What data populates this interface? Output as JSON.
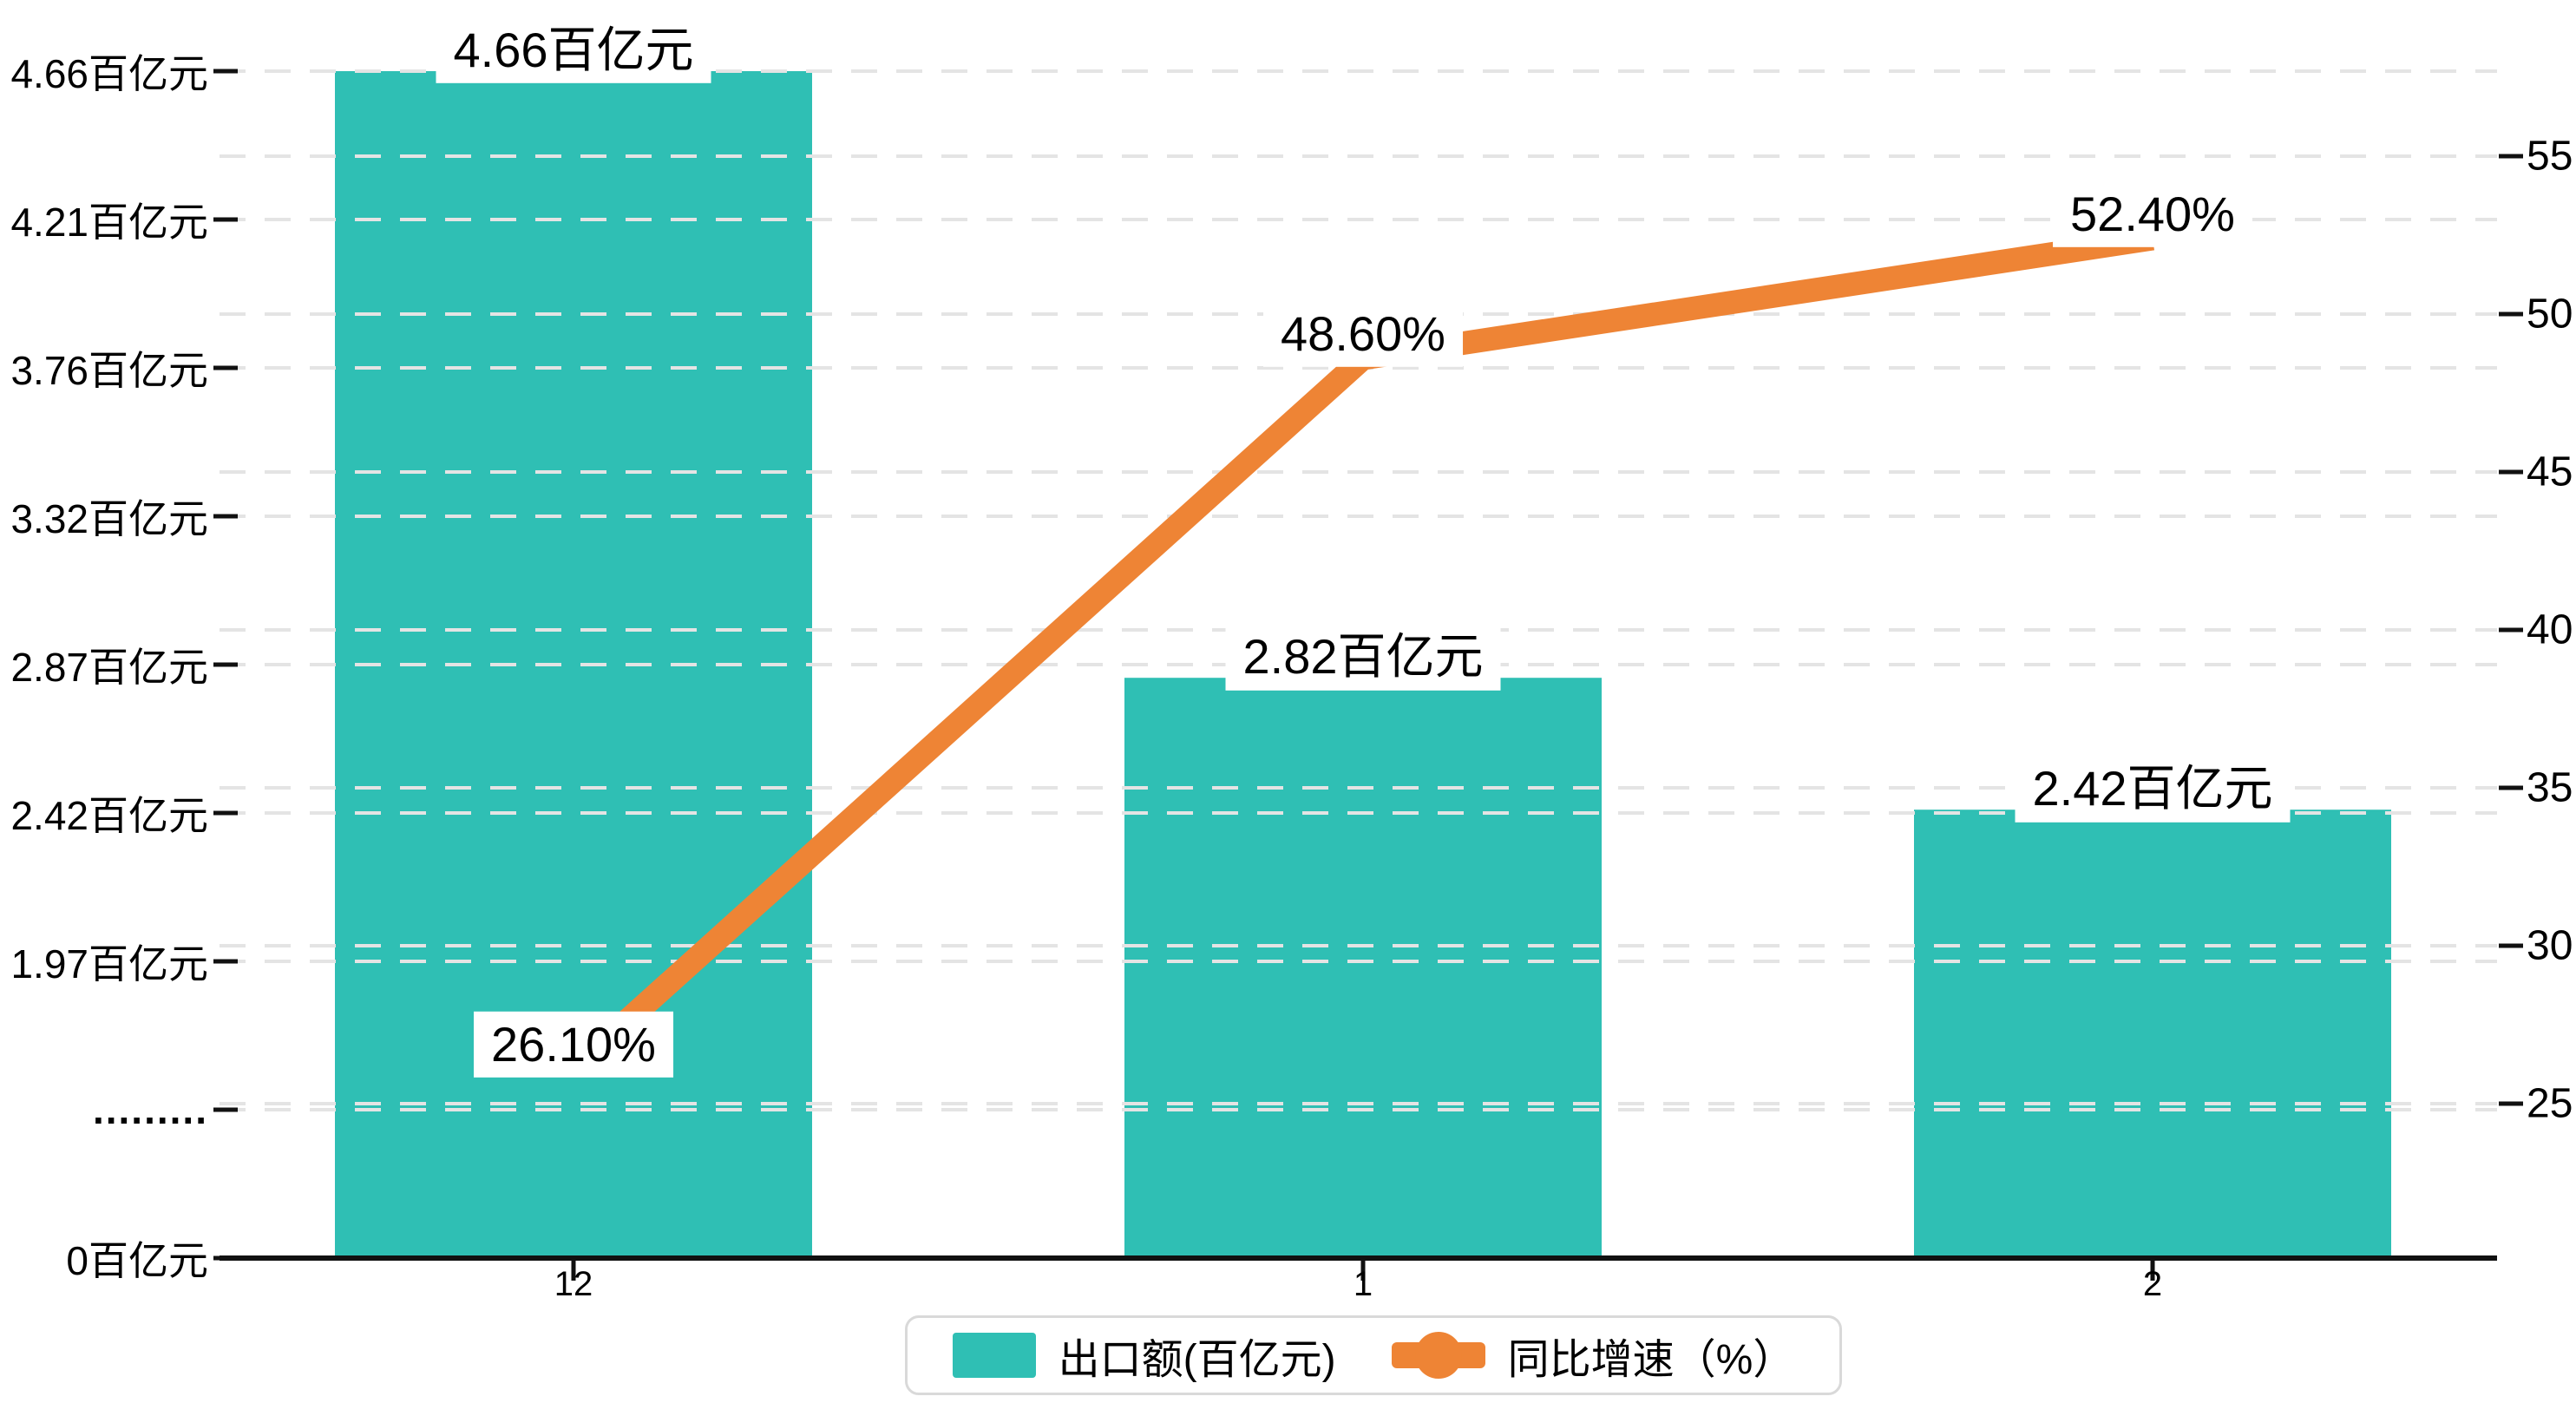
{
  "chart_data": {
    "type": "bar",
    "subtype": "bar-line-dual-axis",
    "categories": [
      "12",
      "1",
      "2"
    ],
    "series": [
      {
        "name": "出口额(百亿元)",
        "type": "bar",
        "values": [
          4.66,
          2.82,
          2.42
        ],
        "unit": "百亿元",
        "labels": [
          "4.66百亿元",
          "2.82百亿元",
          "2.42百亿元"
        ],
        "axis": "left"
      },
      {
        "name": "同比增速（%）",
        "type": "line",
        "values": [
          26.1,
          48.6,
          52.4
        ],
        "unit": "%",
        "labels": [
          "26.10%",
          "48.60%",
          "52.40%"
        ],
        "axis": "right"
      }
    ],
    "left_axis": {
      "tick_labels": [
        "4.66百亿元",
        "4.21百亿元",
        "3.76百亿元",
        "3.32百亿元",
        "2.87百亿元",
        "2.42百亿元",
        "1.97百亿元",
        ".........",
        "0百亿元"
      ],
      "tick_values": [
        4.66,
        4.21,
        3.76,
        3.32,
        2.87,
        2.42,
        1.97,
        null,
        0
      ],
      "broken_axis_marker": ".........",
      "value_step": 0.45
    },
    "right_axis": {
      "tick_labels": [
        "55",
        "50",
        "45",
        "40",
        "35",
        "30",
        "25"
      ],
      "tick_values": [
        55,
        50,
        45,
        40,
        35,
        30,
        25
      ],
      "min": 25,
      "max": 55
    },
    "x_axis": {
      "tick_labels": [
        "12",
        "1",
        "2"
      ]
    },
    "grid": "dashed-horizontal",
    "legend_position": "bottom-center",
    "title": ""
  },
  "legend": {
    "items": [
      {
        "label": "出口额(百亿元)",
        "marker": "bar-swatch"
      },
      {
        "label": "同比增速（%）",
        "marker": "line-dot"
      }
    ]
  },
  "colors": {
    "bar": "#2fbfb4",
    "line": "#ee8435",
    "grid": "#e4e4e4",
    "axis": "#111111",
    "text": "#000000",
    "label_bg": "#ffffff",
    "legend_border": "#d9d9d9",
    "background": "#ffffff"
  }
}
